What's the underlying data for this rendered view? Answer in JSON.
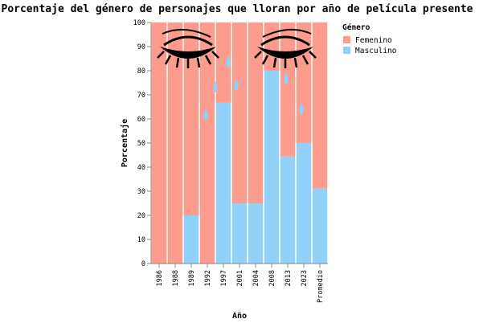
{
  "chart_data": {
    "type": "bar",
    "stacked": true,
    "title": "Porcentaje del género de personajes que lloran por año de película presente",
    "xlabel": "Año",
    "ylabel": "Porcentaje",
    "ylim": [
      0,
      100
    ],
    "yticks": [
      "0",
      "10",
      "20",
      "30",
      "40",
      "50",
      "60",
      "70",
      "80",
      "90",
      "100"
    ],
    "categories": [
      "1986",
      "1988",
      "1989",
      "1992",
      "1997",
      "2001",
      "2004",
      "2008",
      "2013",
      "2023",
      "Promedio"
    ],
    "series": [
      {
        "name": "Masculino",
        "color": "#8fd1f8",
        "values": [
          0,
          0,
          20,
          0,
          66.7,
          25,
          25,
          80,
          44.4,
          50,
          31.1
        ]
      },
      {
        "name": "Femenino",
        "color": "#fd9c8c",
        "values": [
          100,
          100,
          80,
          100,
          33.3,
          75,
          75,
          20,
          55.6,
          50,
          68.9
        ]
      }
    ],
    "legend": {
      "title": "Género",
      "position": "top-right",
      "items": [
        {
          "label": "Femenino",
          "color": "#fd9c8c"
        },
        {
          "label": "Masculino",
          "color": "#8fd1f8"
        }
      ]
    },
    "grid": false,
    "decoration": {
      "eyes_icon": "closed-eyes-with-lashes",
      "tear_icon": "teardrop",
      "tear_color": "#8fd1f8"
    }
  }
}
